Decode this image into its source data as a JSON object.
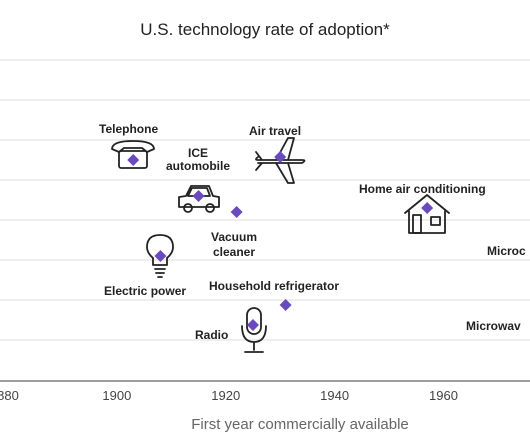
{
  "chart_data": {
    "type": "scatter",
    "title": "U.S. technology rate of adoption*",
    "xlabel": "First year commercially available",
    "xlim": [
      1880,
      1975
    ],
    "x_ticks": [
      "880",
      "1900",
      "1920",
      "1940",
      "1960"
    ],
    "points": [
      {
        "name": "Telephone",
        "x": 1903,
        "icon": "telephone-icon"
      },
      {
        "name": "Air travel",
        "x": 1930,
        "icon": "airplane-icon"
      },
      {
        "name": "ICE automobile",
        "label_lines": [
          "ICE",
          "automobile"
        ],
        "x": 1915,
        "icon": "car-icon"
      },
      {
        "name": "Home air conditioning",
        "x": 1957,
        "icon": "house-icon"
      },
      {
        "name": "Vacuum cleaner",
        "label_lines": [
          "Vacuum",
          "cleaner"
        ],
        "x": 1922,
        "icon": ""
      },
      {
        "name": "Electric power",
        "x": 1908,
        "icon": "lightbulb-icon"
      },
      {
        "name": "Household refrigerator",
        "x": 1931,
        "icon": ""
      },
      {
        "name": "Radio",
        "x": 1925,
        "icon": "microphone-icon"
      },
      {
        "name": "Microc",
        "x": null,
        "icon": ""
      },
      {
        "name": "Microwav",
        "x": null,
        "icon": ""
      }
    ]
  }
}
